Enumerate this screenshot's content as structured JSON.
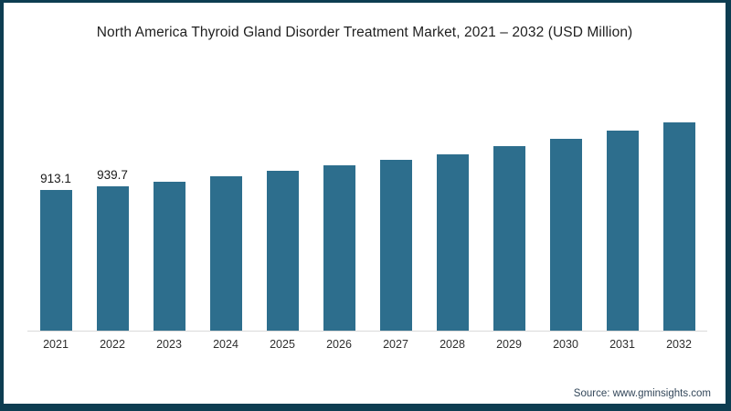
{
  "frame": {
    "border_color": "#0d3d51",
    "background_color": "#ffffff"
  },
  "title": "North America Thyroid Gland Disorder Treatment Market, 2021 – 2032 (USD Million)",
  "source": "Source: www.gminsights.com",
  "chart_data": {
    "type": "bar",
    "title": "North America Thyroid Gland Disorder Treatment Market, 2021 – 2032 (USD Million)",
    "categories": [
      "2021",
      "2022",
      "2023",
      "2024",
      "2025",
      "2026",
      "2027",
      "2028",
      "2029",
      "2030",
      "2031",
      "2032"
    ],
    "values": [
      913.1,
      939.7,
      967,
      1003,
      1039,
      1075,
      1110,
      1148,
      1199,
      1246,
      1300,
      1353
    ],
    "data_labels": [
      "913.1",
      "939.7",
      "",
      "",
      "",
      "",
      "",
      "",
      "",
      "",
      "",
      ""
    ],
    "xlabel": "",
    "ylabel": "",
    "ylim": [
      0,
      1353
    ],
    "grid": false,
    "legend": false,
    "bar_color": "#2d6e8d",
    "axis_line_color": "#d9d9d9"
  }
}
